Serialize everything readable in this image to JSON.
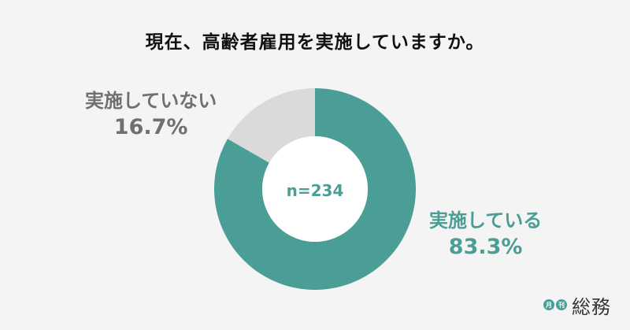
{
  "title": "現在、高齢者雇用を実施していますか。",
  "chart_data": {
    "type": "pie",
    "categories": [
      "実施している",
      "実施していない"
    ],
    "values": [
      83.3,
      16.7
    ],
    "value_labels": [
      "83.3%",
      "16.7%"
    ],
    "colors": [
      "#4a9e96",
      "#dadada"
    ],
    "center_text": "n=234"
  },
  "logo": {
    "dot1": "月",
    "dot2": "刊",
    "name": "総務"
  }
}
